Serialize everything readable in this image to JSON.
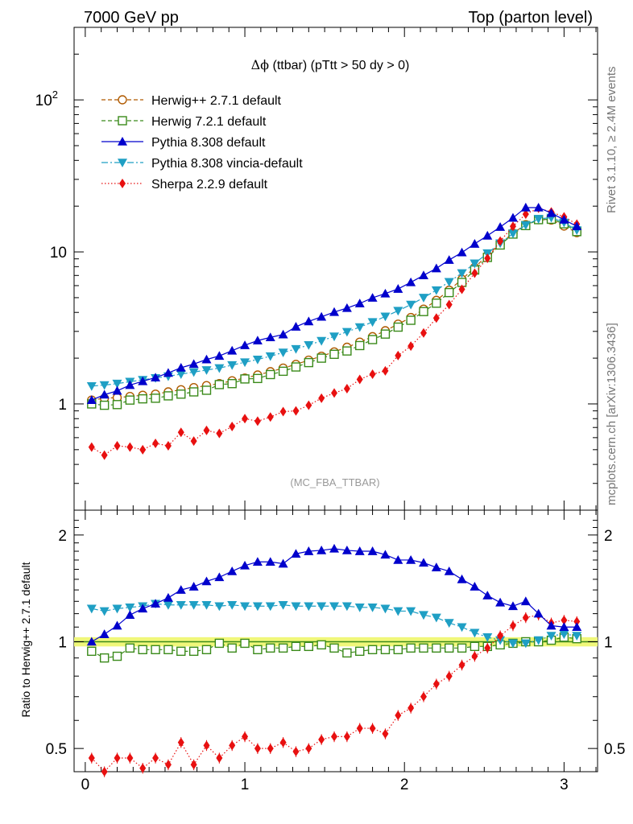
{
  "header": {
    "left": "7000 GeV pp",
    "right": "Top (parton level)"
  },
  "main": {
    "title_sym": "Δϕ",
    "title_rest": " (ttbar) (pTtt > 50 dy > 0)",
    "watermark": "(MC_FBA_TTBAR)"
  },
  "ratio": {
    "ylabel": "Ratio to Herwig++ 2.7.1 default"
  },
  "side": {
    "rivet": "Rivet 3.1.10, ≥ 2.4M events",
    "mcplots": "mcplots.cern.ch [arXiv:1306.3436]"
  },
  "chart_data": {
    "type": "line",
    "x": [
      0.04,
      0.12,
      0.2,
      0.28,
      0.36,
      0.44,
      0.52,
      0.6,
      0.68,
      0.76,
      0.84,
      0.92,
      1.0,
      1.08,
      1.16,
      1.24,
      1.32,
      1.4,
      1.48,
      1.56,
      1.64,
      1.72,
      1.8,
      1.88,
      1.96,
      2.04,
      2.12,
      2.2,
      2.28,
      2.36,
      2.44,
      2.52,
      2.6,
      2.68,
      2.76,
      2.84,
      2.92,
      3.0,
      3.08
    ],
    "main_axis": {
      "scale": "log",
      "ylim": [
        0.2,
        300
      ],
      "xlim": [
        -0.07,
        3.21
      ],
      "yticks": [
        {
          "v": 1,
          "label": "1"
        },
        {
          "v": 10,
          "label": "10"
        },
        {
          "v": 100,
          "label": "10",
          "sup": "2"
        }
      ]
    },
    "ratio_axis": {
      "scale": "log",
      "ylim": [
        0.43,
        2.35
      ],
      "yticks": [
        {
          "v": 0.5,
          "label": "0.5"
        },
        {
          "v": 1,
          "label": "1"
        },
        {
          "v": 2,
          "label": "2"
        }
      ]
    },
    "xticks": [
      0,
      1,
      2,
      3
    ],
    "band": [
      0.97,
      1.03
    ],
    "series": [
      {
        "name": "Herwig++ 2.7.1 default",
        "color": "#b05a00",
        "marker": "circle",
        "dash": "5,3",
        "values": [
          1.06,
          1.09,
          1.1,
          1.12,
          1.14,
          1.16,
          1.2,
          1.24,
          1.28,
          1.32,
          1.36,
          1.42,
          1.48,
          1.55,
          1.63,
          1.72,
          1.82,
          1.94,
          2.06,
          2.2,
          2.36,
          2.55,
          2.77,
          3.03,
          3.35,
          3.7,
          4.2,
          4.8,
          5.6,
          6.6,
          7.9,
          9.5,
          11.3,
          13.3,
          15.1,
          16.3,
          16.2,
          14.8,
          13.4
        ],
        "ratio": [
          1.0,
          1.0,
          1.0,
          1.0,
          1.0,
          1.0,
          1.0,
          1.0,
          1.0,
          1.0,
          1.0,
          1.0,
          1.0,
          1.0,
          1.0,
          1.0,
          1.0,
          1.0,
          1.0,
          1.0,
          1.0,
          1.0,
          1.0,
          1.0,
          1.0,
          1.0,
          1.0,
          1.0,
          1.0,
          1.0,
          1.0,
          1.0,
          1.0,
          1.0,
          1.0,
          1.0,
          1.0,
          1.0,
          1.0
        ]
      },
      {
        "name": "Herwig 7.2.1 default",
        "color": "#3a8a1a",
        "marker": "square",
        "dash": "5,3",
        "values": [
          1.0,
          0.98,
          0.99,
          1.06,
          1.08,
          1.09,
          1.13,
          1.16,
          1.2,
          1.23,
          1.34,
          1.36,
          1.46,
          1.47,
          1.56,
          1.64,
          1.75,
          1.87,
          2.0,
          2.12,
          2.23,
          2.42,
          2.65,
          2.88,
          3.2,
          3.55,
          4.05,
          4.6,
          5.4,
          6.3,
          7.6,
          9.2,
          11.1,
          13.1,
          14.9,
          16.3,
          16.4,
          15.3,
          13.6
        ],
        "ratio": [
          0.94,
          0.9,
          0.91,
          0.96,
          0.95,
          0.95,
          0.95,
          0.94,
          0.94,
          0.95,
          0.99,
          0.96,
          0.99,
          0.95,
          0.96,
          0.96,
          0.97,
          0.97,
          0.98,
          0.96,
          0.93,
          0.94,
          0.95,
          0.95,
          0.95,
          0.96,
          0.96,
          0.96,
          0.96,
          0.96,
          0.97,
          0.97,
          0.98,
          0.99,
          1.0,
          1.0,
          1.01,
          1.03,
          1.02
        ]
      },
      {
        "name": "Pythia 8.308 default",
        "color": "#0000cc",
        "marker": "triangle-up",
        "dash": "",
        "values": [
          1.06,
          1.15,
          1.22,
          1.33,
          1.41,
          1.49,
          1.6,
          1.73,
          1.83,
          1.96,
          2.07,
          2.24,
          2.43,
          2.61,
          2.74,
          2.86,
          3.22,
          3.49,
          3.74,
          4.02,
          4.27,
          4.58,
          4.99,
          5.32,
          5.71,
          6.31,
          7.01,
          7.79,
          8.85,
          9.92,
          11.3,
          12.78,
          14.58,
          16.76,
          19.58,
          19.56,
          18.0,
          16.28,
          14.74
        ],
        "ratio": [
          1.0,
          1.05,
          1.11,
          1.19,
          1.24,
          1.28,
          1.33,
          1.4,
          1.43,
          1.48,
          1.52,
          1.58,
          1.64,
          1.68,
          1.68,
          1.66,
          1.77,
          1.8,
          1.81,
          1.83,
          1.81,
          1.8,
          1.8,
          1.76,
          1.7,
          1.7,
          1.67,
          1.62,
          1.58,
          1.5,
          1.43,
          1.35,
          1.29,
          1.26,
          1.3,
          1.2,
          1.11,
          1.1,
          1.1
        ]
      },
      {
        "name": "Pythia 8.308 vincia-default",
        "color": "#1f9fc4",
        "marker": "triangle-down",
        "dash": "8,3,2,3",
        "values": [
          1.31,
          1.33,
          1.36,
          1.4,
          1.44,
          1.48,
          1.52,
          1.57,
          1.62,
          1.67,
          1.72,
          1.8,
          1.88,
          1.96,
          2.06,
          2.18,
          2.3,
          2.44,
          2.6,
          2.78,
          2.98,
          3.2,
          3.46,
          3.76,
          4.1,
          4.5,
          5.0,
          5.6,
          6.35,
          7.25,
          8.4,
          9.8,
          11.4,
          13.2,
          15.0,
          16.5,
          16.8,
          15.6,
          13.9
        ],
        "ratio": [
          1.24,
          1.22,
          1.24,
          1.25,
          1.26,
          1.28,
          1.27,
          1.27,
          1.27,
          1.27,
          1.26,
          1.27,
          1.26,
          1.26,
          1.26,
          1.27,
          1.26,
          1.26,
          1.26,
          1.26,
          1.26,
          1.25,
          1.25,
          1.24,
          1.22,
          1.22,
          1.19,
          1.17,
          1.13,
          1.1,
          1.06,
          1.03,
          1.01,
          0.99,
          0.99,
          1.01,
          1.04,
          1.05,
          1.04
        ]
      },
      {
        "name": "Sherpa 2.2.9 default",
        "color": "#e81010",
        "marker": "diamond",
        "dash": "1.5,2.5",
        "values": [
          0.52,
          0.46,
          0.53,
          0.52,
          0.5,
          0.55,
          0.53,
          0.65,
          0.57,
          0.67,
          0.64,
          0.71,
          0.8,
          0.77,
          0.82,
          0.89,
          0.9,
          0.98,
          1.09,
          1.18,
          1.26,
          1.45,
          1.57,
          1.65,
          2.08,
          2.4,
          2.93,
          3.67,
          4.5,
          5.68,
          7.24,
          9.07,
          11.78,
          14.73,
          17.72,
          19.38,
          18.31,
          17.0,
          15.23
        ],
        "ratio": [
          0.47,
          0.43,
          0.47,
          0.47,
          0.44,
          0.47,
          0.45,
          0.52,
          0.45,
          0.51,
          0.47,
          0.51,
          0.54,
          0.5,
          0.5,
          0.52,
          0.49,
          0.5,
          0.53,
          0.54,
          0.54,
          0.57,
          0.57,
          0.55,
          0.62,
          0.65,
          0.7,
          0.76,
          0.8,
          0.86,
          0.91,
          0.96,
          1.04,
          1.11,
          1.17,
          1.19,
          1.13,
          1.15,
          1.14
        ]
      }
    ]
  }
}
